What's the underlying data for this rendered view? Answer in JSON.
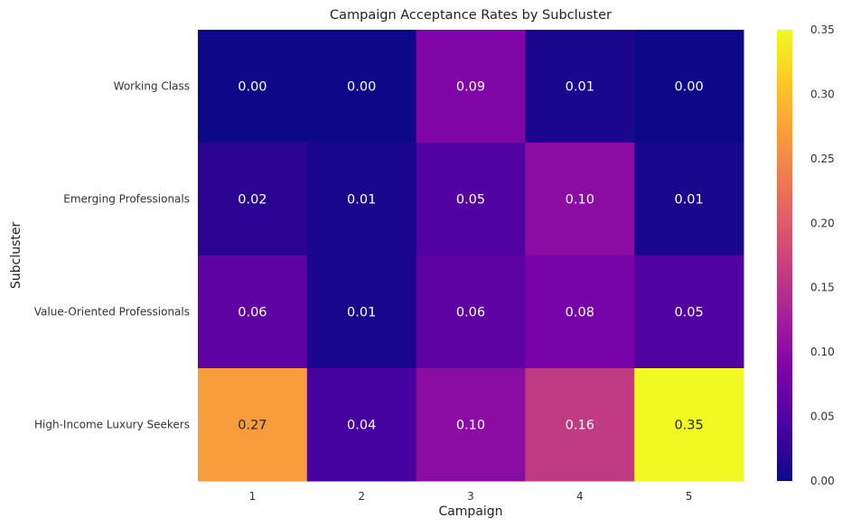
{
  "chart_data": {
    "type": "heatmap",
    "title": "Campaign Acceptance Rates by Subcluster",
    "xlabel": "Campaign",
    "ylabel": "Subcluster",
    "x_categories": [
      "1",
      "2",
      "3",
      "4",
      "5"
    ],
    "y_categories": [
      "Working Class",
      "Emerging Professionals",
      "Value-Oriented Professionals",
      "High-Income Luxury Seekers"
    ],
    "values": [
      [
        0.0,
        0.0,
        0.09,
        0.01,
        0.0
      ],
      [
        0.02,
        0.01,
        0.05,
        0.1,
        0.01
      ],
      [
        0.06,
        0.01,
        0.06,
        0.08,
        0.05
      ],
      [
        0.27,
        0.04,
        0.1,
        0.16,
        0.35
      ]
    ],
    "cell_labels": [
      [
        "0.00",
        "0.00",
        "0.09",
        "0.01",
        "0.00"
      ],
      [
        "0.02",
        "0.01",
        "0.05",
        "0.10",
        "0.01"
      ],
      [
        "0.06",
        "0.01",
        "0.06",
        "0.08",
        "0.05"
      ],
      [
        "0.27",
        "0.04",
        "0.10",
        "0.16",
        "0.35"
      ]
    ],
    "colormap": "plasma",
    "vmin": 0.0,
    "vmax": 0.35,
    "colorbar_ticks": [
      "0.00",
      "0.05",
      "0.10",
      "0.15",
      "0.20",
      "0.25",
      "0.30",
      "0.35"
    ],
    "grid": false,
    "legend": "colorbar-right"
  }
}
